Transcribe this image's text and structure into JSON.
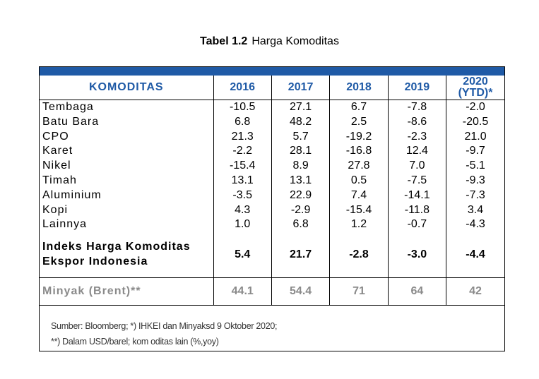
{
  "caption": {
    "number": "Tabel 1.2",
    "title": "Harga Komoditas"
  },
  "table": {
    "headers": [
      "KOMODITAS",
      "2016",
      "2017",
      "2018",
      "2019",
      "2020 (YTD)*"
    ],
    "rows": [
      {
        "name": "Tembaga",
        "values": [
          "-10.5",
          "27.1",
          "6.7",
          "-7.8",
          "-2.0"
        ]
      },
      {
        "name": "Batu Bara",
        "values": [
          "6.8",
          "48.2",
          "2.5",
          "-8.6",
          "-20.5"
        ]
      },
      {
        "name": "CPO",
        "values": [
          "21.3",
          "5.7",
          "-19.2",
          "-2.3",
          "21.0"
        ]
      },
      {
        "name": "Karet",
        "values": [
          "-2.2",
          "28.1",
          "-16.8",
          "12.4",
          "-9.7"
        ]
      },
      {
        "name": "Nikel",
        "values": [
          "-15.4",
          "8.9",
          "27.8",
          "7.0",
          "-5.1"
        ]
      },
      {
        "name": "Timah",
        "values": [
          "13.1",
          "13.1",
          "0.5",
          "-7.5",
          "-9.3"
        ]
      },
      {
        "name": "Aluminium",
        "values": [
          "-3.5",
          "22.9",
          "7.4",
          "-14.1",
          "-7.3"
        ]
      },
      {
        "name": "Kopi",
        "values": [
          "4.3",
          "-2.9",
          "-15.4",
          "-11.8",
          "3.4"
        ]
      },
      {
        "name": "Lainnya",
        "values": [
          "1.0",
          "6.8",
          "1.2",
          "-0.7",
          "-4.3"
        ]
      }
    ],
    "composite": {
      "name": "Indeks Harga Komoditas Ekspor Indonesia",
      "values": [
        "5.4",
        "21.7",
        "-2.8",
        "-3.0",
        "-4.4"
      ]
    },
    "oil": {
      "name": "Minyak (Brent)**",
      "values": [
        "44.1",
        "54.4",
        "71",
        "64",
        "42"
      ]
    }
  },
  "source": {
    "line1": "Sumber: Bloomberg; *) IHKEI  dan Minyaksd 9 Oktober 2020;",
    "line2": "**) Dalam USD/barel; kom oditas lain (%,yoy)"
  },
  "colors": {
    "header_text": "#1f5aa6",
    "top_bar": "#1f5aa6",
    "oil_text": "#8a8a8a"
  }
}
